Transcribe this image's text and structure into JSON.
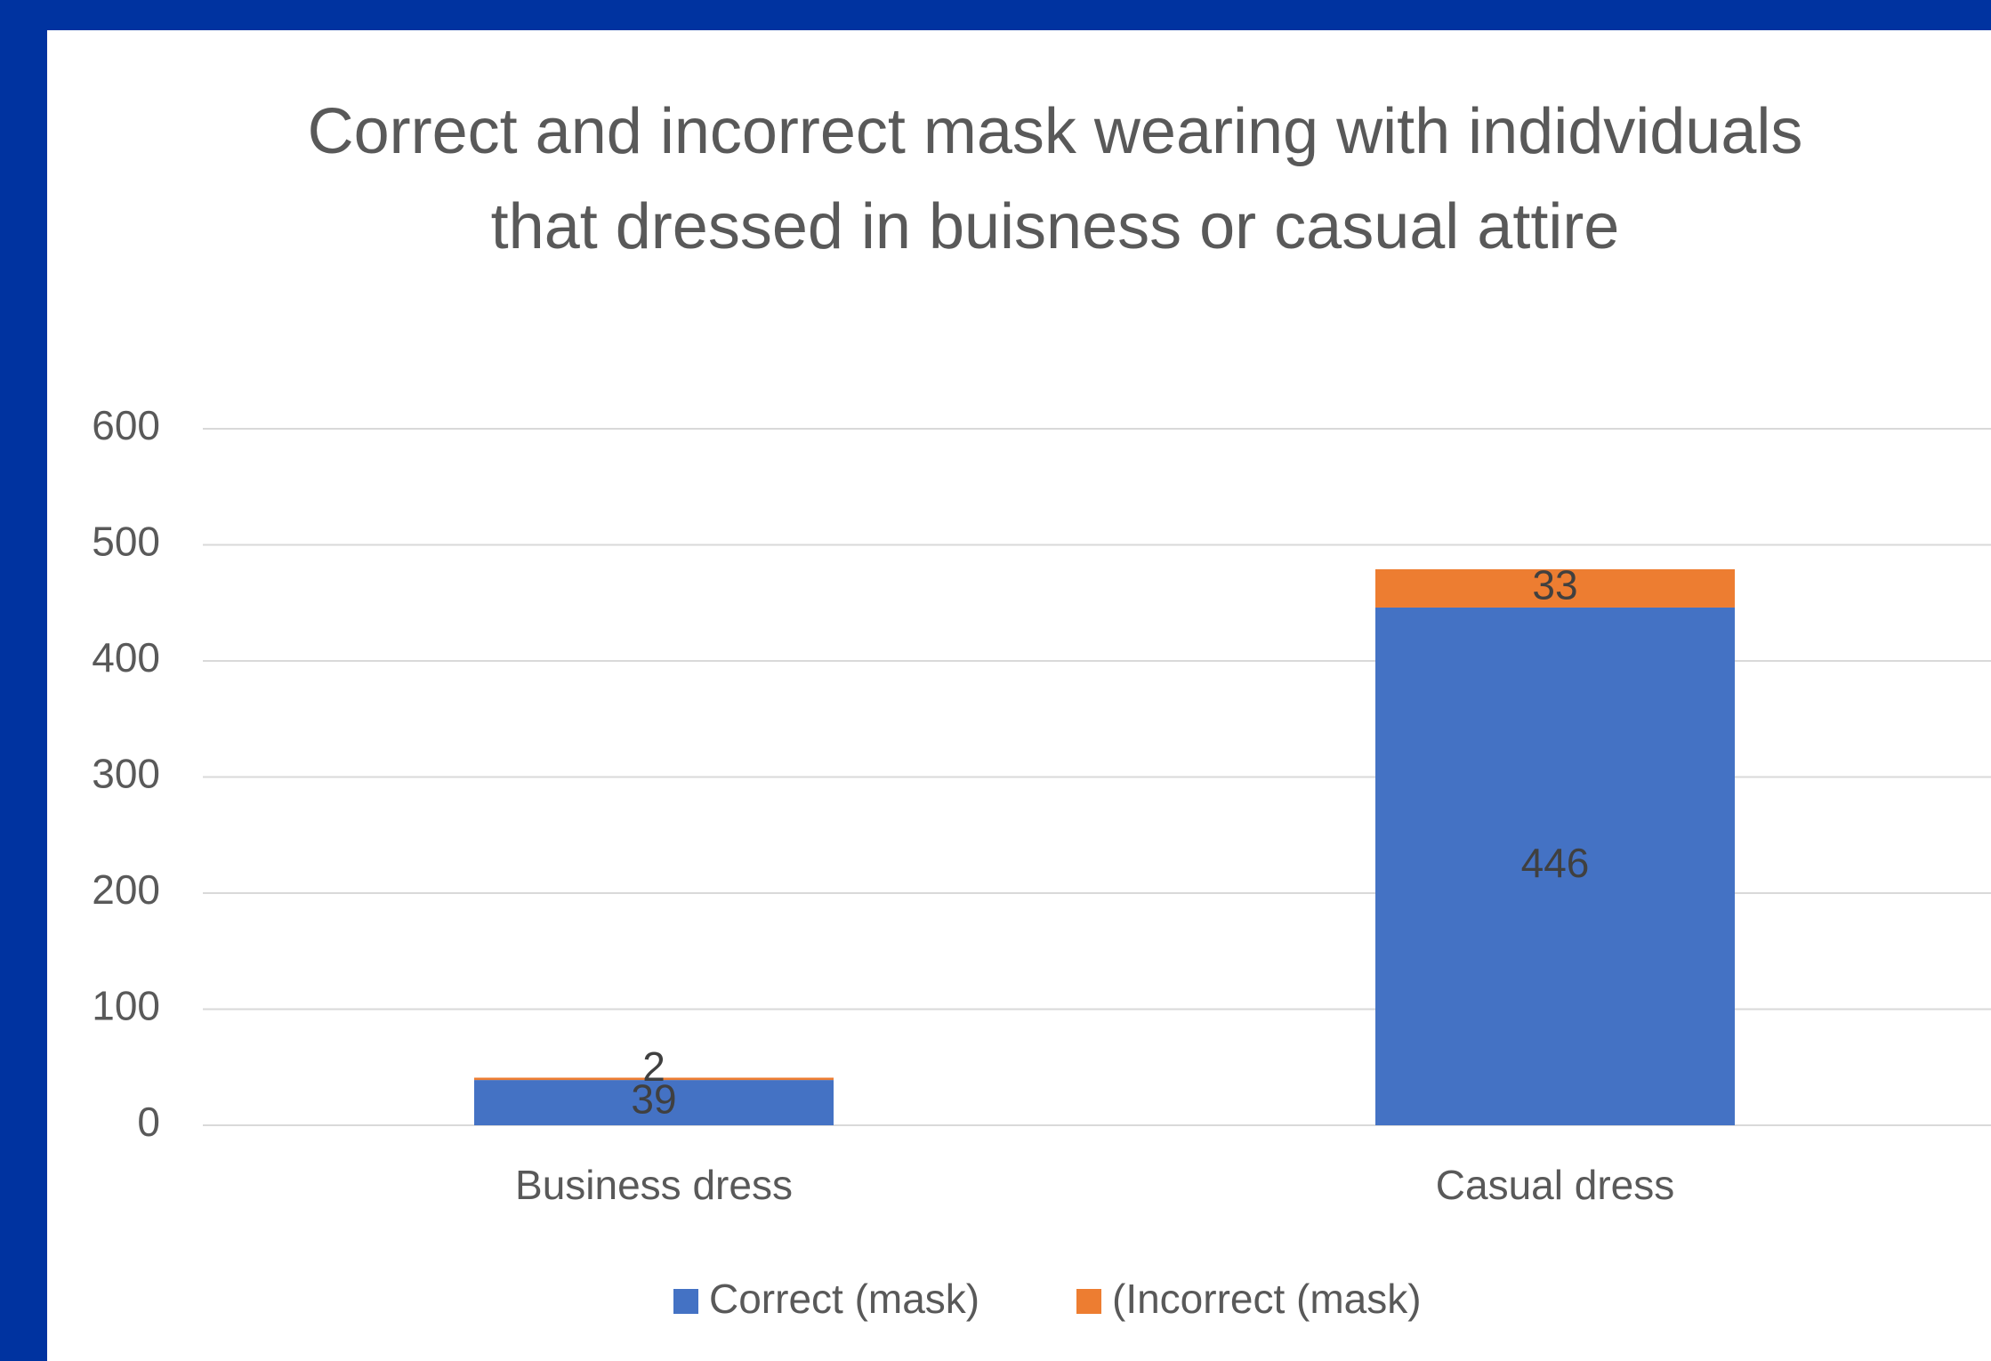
{
  "chart_data": {
    "type": "stacked_bar",
    "title": "Correct and incorrect mask wearing with indidviduals that dressed in buisness or casual attire",
    "categories": [
      "Business dress",
      "Casual dress"
    ],
    "series": [
      {
        "name": "Correct (mask)",
        "color": "#4472c4",
        "values": [
          39,
          446
        ]
      },
      {
        "name": "(Incorrect (mask)",
        "color": "#ed7d31",
        "values": [
          2,
          33
        ]
      }
    ],
    "ylim": [
      0,
      600
    ],
    "yticks": [
      0,
      100,
      200,
      300,
      400,
      500,
      600
    ],
    "grid": true,
    "legend": "bottom"
  }
}
